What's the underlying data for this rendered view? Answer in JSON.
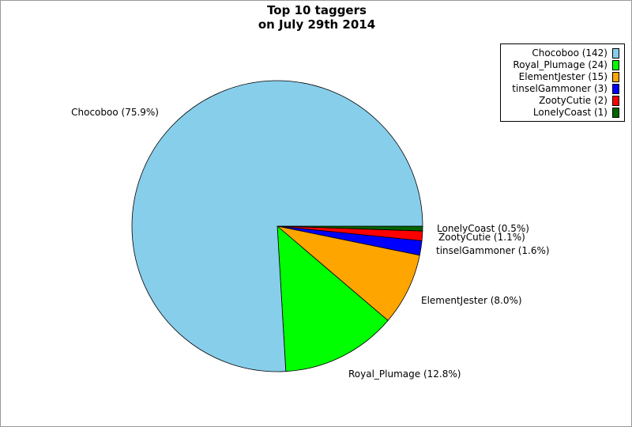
{
  "chart_data": {
    "type": "pie",
    "title_lines": [
      "Top 10 taggers",
      "on July 29th 2014"
    ],
    "slices": [
      {
        "name": "Chocoboo",
        "value": 142,
        "percent_label": "Chocoboo (75.9%)",
        "legend_label": "Chocoboo (142)",
        "color": "#87ceeb"
      },
      {
        "name": "Royal_Plumage",
        "value": 24,
        "percent_label": "Royal_Plumage (12.8%)",
        "legend_label": "Royal_Plumage (24)",
        "color": "#00ff00"
      },
      {
        "name": "ElementJester",
        "value": 15,
        "percent_label": "ElementJester (8.0%)",
        "legend_label": "ElementJester (15)",
        "color": "#ffa500"
      },
      {
        "name": "tinselGammoner",
        "value": 3,
        "percent_label": "tinselGammoner (1.6%)",
        "legend_label": "tinselGammoner (3)",
        "color": "#0000ff"
      },
      {
        "name": "ZootyCutie",
        "value": 2,
        "percent_label": "ZootyCutie (1.1%)",
        "legend_label": "ZootyCutie (2)",
        "color": "#ff0000"
      },
      {
        "name": "LonelyCoast",
        "value": 1,
        "percent_label": "LonelyCoast (0.5%)",
        "legend_label": "LonelyCoast (1)",
        "color": "#006400"
      }
    ],
    "legend_placement": "top-right"
  }
}
